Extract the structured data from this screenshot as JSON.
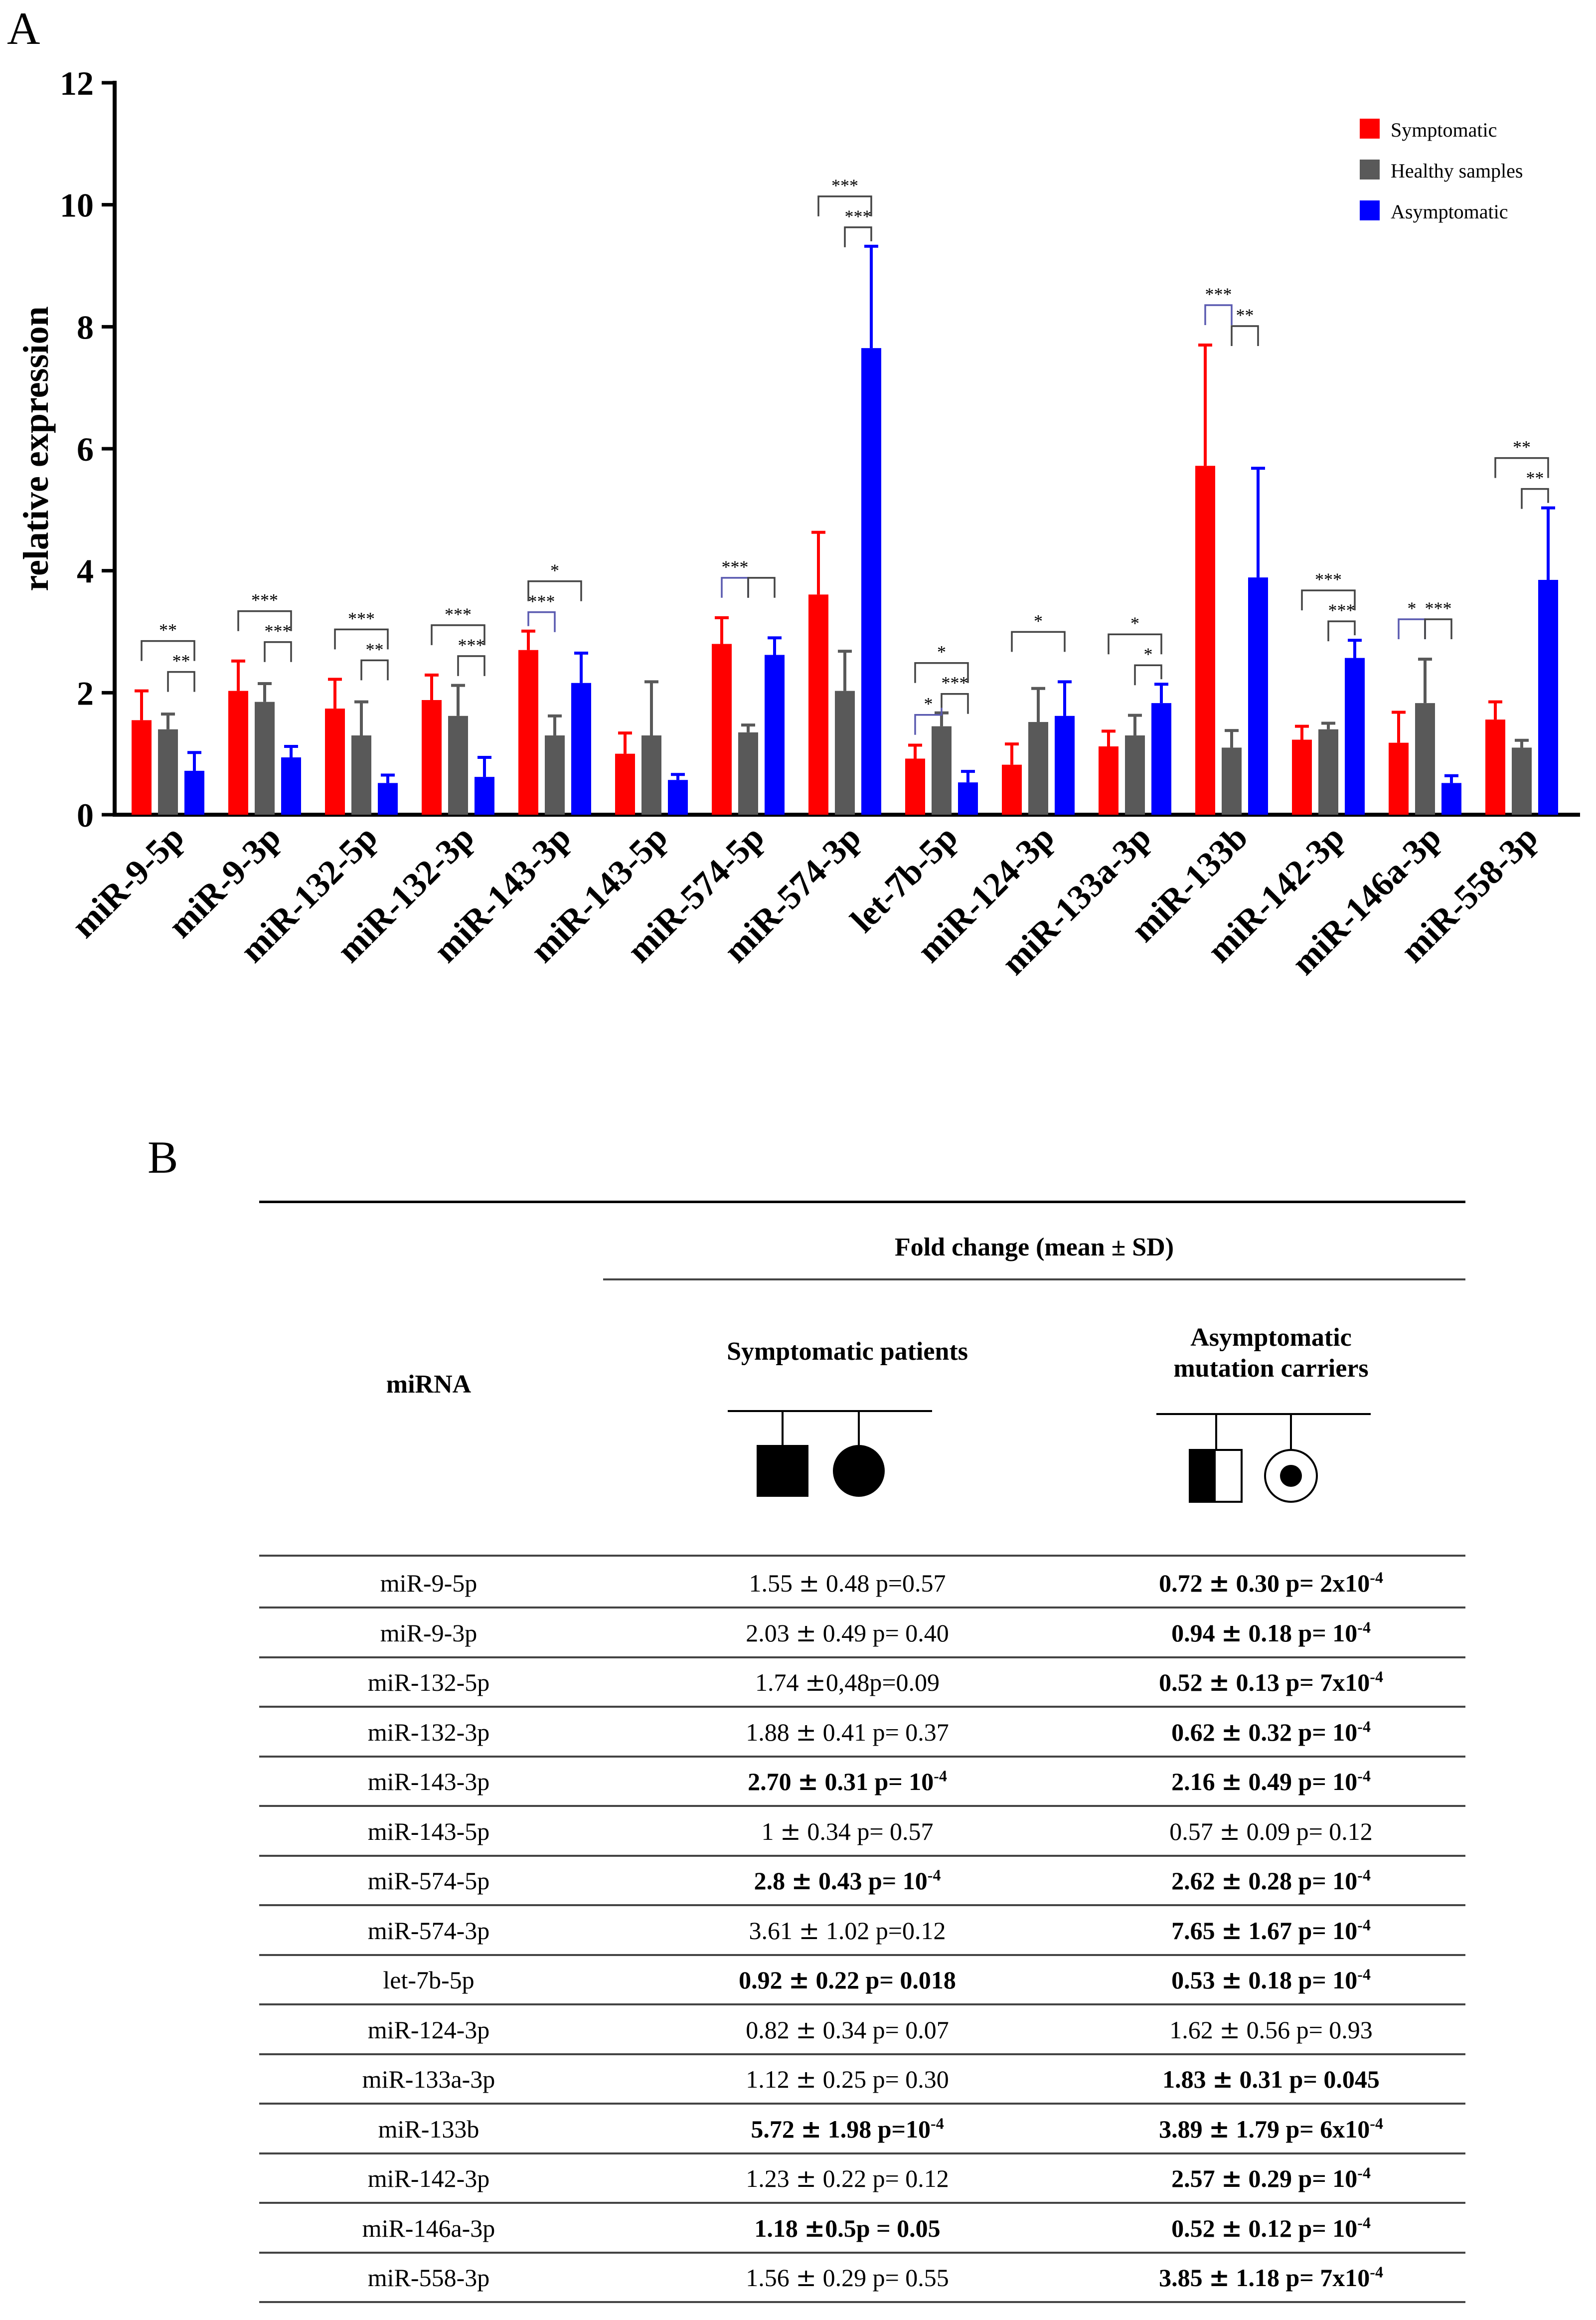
{
  "panel_a_label": "A",
  "panel_b_label": "B",
  "chart_data": {
    "type": "bar",
    "title": "",
    "xlabel": "",
    "ylabel": "relative expression",
    "ylim": [
      0,
      12
    ],
    "yticks": [
      0,
      2,
      4,
      6,
      8,
      10,
      12
    ],
    "legend_position": "top-right",
    "categories": [
      "miR-9-5p",
      "miR-9-3p",
      "miR-132-5p",
      "miR-132-3p",
      "miR-143-3p",
      "miR-143-5p",
      "miR-574-5p",
      "miR-574-3p",
      "let-7b-5p",
      "miR-124-3p",
      "miR-133a-3p",
      "miR-133b",
      "miR-142-3p",
      "miR-146a-3p",
      "miR-558-3p"
    ],
    "series": [
      {
        "name": "Symptomatic",
        "color": "#ff0000",
        "values": [
          1.55,
          2.03,
          1.74,
          1.88,
          2.7,
          1.0,
          2.8,
          3.61,
          0.92,
          0.82,
          1.12,
          5.72,
          1.23,
          1.18,
          1.56
        ],
        "errors": [
          0.48,
          0.49,
          0.48,
          0.41,
          0.31,
          0.34,
          0.43,
          1.02,
          0.22,
          0.34,
          0.25,
          1.98,
          0.22,
          0.5,
          0.29
        ]
      },
      {
        "name": "Healthy samples",
        "color": "#595959",
        "values": [
          1.4,
          1.85,
          1.3,
          1.62,
          1.3,
          1.3,
          1.35,
          2.03,
          1.45,
          1.52,
          1.3,
          1.1,
          1.4,
          1.83,
          1.1
        ],
        "errors": [
          0.25,
          0.3,
          0.55,
          0.5,
          0.32,
          0.88,
          0.12,
          0.65,
          0.22,
          0.55,
          0.33,
          0.28,
          0.1,
          0.72,
          0.12
        ]
      },
      {
        "name": "Asymptomatic",
        "color": "#0000ff",
        "values": [
          0.72,
          0.94,
          0.52,
          0.62,
          2.16,
          0.57,
          2.62,
          7.65,
          0.53,
          1.62,
          1.83,
          3.89,
          2.57,
          0.52,
          3.85
        ],
        "errors": [
          0.3,
          0.18,
          0.13,
          0.32,
          0.49,
          0.09,
          0.28,
          1.67,
          0.18,
          0.56,
          0.31,
          1.79,
          0.29,
          0.12,
          1.18
        ]
      }
    ],
    "significance": [
      {
        "group": 0,
        "from": 0,
        "to": 2,
        "label": "**",
        "level": 0
      },
      {
        "group": 0,
        "from": 1,
        "to": 2,
        "label": "**",
        "level": 1
      },
      {
        "group": 1,
        "from": 0,
        "to": 2,
        "label": "***",
        "level": 0
      },
      {
        "group": 1,
        "from": 1,
        "to": 2,
        "label": "***",
        "level": 1
      },
      {
        "group": 2,
        "from": 0,
        "to": 2,
        "label": "***",
        "level": 0
      },
      {
        "group": 2,
        "from": 1,
        "to": 2,
        "label": "**",
        "level": 1
      },
      {
        "group": 3,
        "from": 0,
        "to": 2,
        "label": "***",
        "level": 0
      },
      {
        "group": 3,
        "from": 1,
        "to": 2,
        "label": "***",
        "level": 1
      },
      {
        "group": 4,
        "from": 0,
        "to": 2,
        "label": "*",
        "level": 0
      },
      {
        "group": 4,
        "from": 0,
        "to": 1,
        "label": "***",
        "level": 1
      },
      {
        "group": 6,
        "from": 0,
        "to": 1,
        "label": "***",
        "level": 0
      },
      {
        "group": 6,
        "from": 1,
        "to": 2,
        "label": "",
        "level": 0
      },
      {
        "group": 7,
        "from": 0,
        "to": 2,
        "label": "***",
        "level": 0
      },
      {
        "group": 7,
        "from": 1,
        "to": 2,
        "label": "***",
        "level": 1
      },
      {
        "group": 8,
        "from": 0,
        "to": 2,
        "label": "*",
        "level": 0
      },
      {
        "group": 8,
        "from": 0,
        "to": 1,
        "label": "*",
        "level": 2
      },
      {
        "group": 8,
        "from": 1,
        "to": 2,
        "label": "***",
        "level": 1
      },
      {
        "group": 9,
        "from": 0,
        "to": 2,
        "label": "*",
        "level": 0
      },
      {
        "group": 10,
        "from": 0,
        "to": 2,
        "label": "*",
        "level": 0
      },
      {
        "group": 10,
        "from": 1,
        "to": 2,
        "label": "*",
        "level": 1
      },
      {
        "group": 11,
        "from": 0,
        "to": 1,
        "label": "***",
        "level": 0
      },
      {
        "group": 11,
        "from": 1,
        "to": 2,
        "label": "**",
        "level": 1
      },
      {
        "group": 12,
        "from": 0,
        "to": 2,
        "label": "***",
        "level": 0
      },
      {
        "group": 12,
        "from": 1,
        "to": 2,
        "label": "***",
        "level": 1
      },
      {
        "group": 13,
        "from": 0,
        "to": 1,
        "label": "*",
        "level": 0
      },
      {
        "group": 13,
        "from": 1,
        "to": 2,
        "label": "***",
        "level": 0
      },
      {
        "group": 14,
        "from": 0,
        "to": 2,
        "label": "**",
        "level": 0
      },
      {
        "group": 14,
        "from": 1,
        "to": 2,
        "label": "**",
        "level": 1
      }
    ]
  },
  "table": {
    "header_fold": "Fold change (mean ± SD)",
    "header_mirna": "miRNA",
    "header_symptomatic": "Symptomatic patients",
    "header_asymptomatic_line1": "Asymptomatic",
    "header_asymptomatic_line2": "mutation carriers",
    "rows": [
      {
        "name": "miR-9-5p",
        "sym": {
          "mean": "1.55",
          "sd": "0.48",
          "p": " p=0.57",
          "pexp": "",
          "bold": false
        },
        "asym": {
          "mean": "0.72",
          "sd": "0.30",
          "p": "p= 2x10",
          "pexp": "-4",
          "bold": true
        }
      },
      {
        "name": "miR-9-3p",
        "sym": {
          "mean": "2.03",
          "sd": "0.49",
          "p": "p= 0.40",
          "pexp": "",
          "bold": false
        },
        "asym": {
          "mean": "0.94",
          "sd": "0.18",
          "p": "p= 10",
          "pexp": "-4",
          "bold": true
        }
      },
      {
        "name": "miR-132-5p",
        "sym": {
          "mean": "1.74",
          "sd": "0,48",
          "p": "p=0.09",
          "pexp": "",
          "bold": false,
          "nospace": true
        },
        "asym": {
          "mean": "0.52",
          "sd": "0.13",
          "p": "p= 7x10",
          "pexp": "-4",
          "bold": true
        }
      },
      {
        "name": "miR-132-3p",
        "sym": {
          "mean": "1.88",
          "sd": "0.41",
          "p": "p= 0.37",
          "pexp": "",
          "bold": false
        },
        "asym": {
          "mean": "0.62",
          "sd": "0.32",
          "p": "p= 10",
          "pexp": "-4",
          "bold": true
        }
      },
      {
        "name": "miR-143-3p",
        "sym": {
          "mean": "2.70",
          "sd": "0.31",
          "p": "p= 10",
          "pexp": "-4",
          "bold": true
        },
        "asym": {
          "mean": "2.16",
          "sd": "0.49",
          "p": "p= 10",
          "pexp": "-4",
          "bold": true
        }
      },
      {
        "name": "miR-143-5p",
        "sym": {
          "mean": "1",
          "sd": "0.34",
          "p": "p= 0.57",
          "pexp": "",
          "bold": false
        },
        "asym": {
          "mean": "0.57",
          "sd": "0.09",
          "p": "p= 0.12",
          "pexp": "",
          "bold": false
        }
      },
      {
        "name": "miR-574-5p",
        "sym": {
          "mean": "2.8",
          "sd": "0.43",
          "p": "p= 10",
          "pexp": "-4",
          "bold": true
        },
        "asym": {
          "mean": "2.62",
          "sd": "0.28",
          "p": "p= 10",
          "pexp": "-4",
          "bold": true
        }
      },
      {
        "name": "miR-574-3p",
        "sym": {
          "mean": "3.61",
          "sd": "1.02",
          "p": "p=0.12",
          "pexp": "",
          "bold": false
        },
        "asym": {
          "mean": "7.65",
          "sd": "1.67",
          "p": "p= 10",
          "pexp": "-4",
          "bold": true
        }
      },
      {
        "name": "let-7b-5p",
        "sym": {
          "mean": "0.92",
          "sd": "0.22",
          "p": "p= 0.018",
          "pexp": "",
          "bold": true
        },
        "asym": {
          "mean": "0.53",
          "sd": "0.18",
          "p": "p= 10",
          "pexp": "-4",
          "bold": true
        }
      },
      {
        "name": "miR-124-3p",
        "sym": {
          "mean": "0.82",
          "sd": "0.34",
          "p": "p= 0.07",
          "pexp": "",
          "bold": false
        },
        "asym": {
          "mean": "1.62",
          "sd": "0.56",
          "p": "p= 0.93",
          "pexp": "",
          "bold": false
        }
      },
      {
        "name": "miR-133a-3p",
        "sym": {
          "mean": "1.12",
          "sd": "0.25",
          "p": "p= 0.30",
          "pexp": "",
          "bold": false
        },
        "asym": {
          "mean": "1.83",
          "sd": "0.31",
          "p": "p= 0.045",
          "pexp": "",
          "bold": true
        }
      },
      {
        "name": "miR-133b",
        "sym": {
          "mean": "5.72",
          "sd": "1.98",
          "p": "p=10",
          "pexp": "-4",
          "bold": true
        },
        "asym": {
          "mean": "3.89",
          "sd": "1.79",
          "p": "p= 6x10",
          "pexp": "-4",
          "bold": true
        }
      },
      {
        "name": "miR-142-3p",
        "sym": {
          "mean": "1.23",
          "sd": "0.22",
          "p": "p= 0.12",
          "pexp": "",
          "bold": false
        },
        "asym": {
          "mean": "2.57",
          "sd": "0.29",
          "p": "p= 10",
          "pexp": "-4",
          "bold": true
        }
      },
      {
        "name": "miR-146a-3p",
        "sym": {
          "mean": "1.18",
          "sd": "0.5",
          "p": "p = 0.05",
          "pexp": "",
          "bold": true,
          "nospace": true
        },
        "asym": {
          "mean": "0.52",
          "sd": "0.12",
          "p": "p= 10",
          "pexp": "-4",
          "bold": true
        }
      },
      {
        "name": "miR-558-3p",
        "sym": {
          "mean": "1.56",
          "sd": "0.29",
          "p": "p= 0.55",
          "pexp": "",
          "bold": false
        },
        "asym": {
          "mean": "3.85",
          "sd": "1.18",
          "p": "p= 7x10",
          "pexp": "-4",
          "bold": true
        }
      }
    ]
  }
}
